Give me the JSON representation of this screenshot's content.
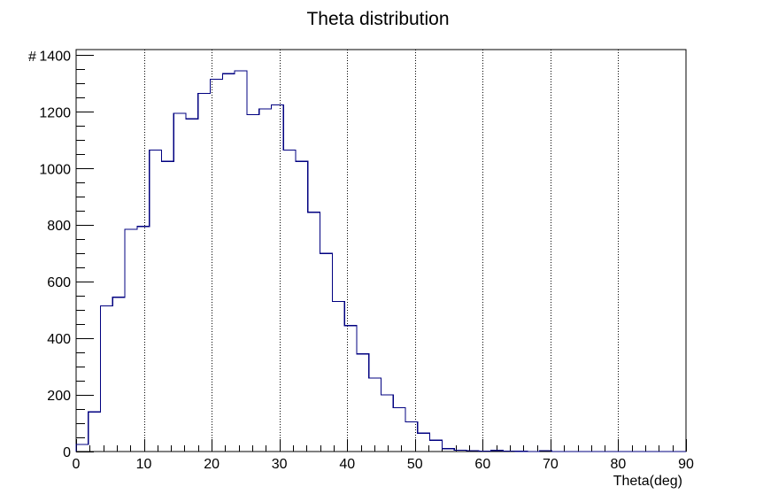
{
  "chart_data": {
    "type": "histogram",
    "title": "Theta distribution",
    "xlabel": "Theta(deg)",
    "ylabel": "#",
    "xlim": [
      0,
      90
    ],
    "ylim": [
      0,
      1420
    ],
    "x_ticks": [
      0,
      10,
      20,
      30,
      40,
      50,
      60,
      70,
      80,
      90
    ],
    "y_ticks": [
      0,
      200,
      400,
      600,
      800,
      1000,
      1200,
      1400
    ],
    "grid": "x-dotted",
    "bins": {
      "start": 0,
      "width": 1.8,
      "count": 50
    },
    "values": [
      25,
      140,
      515,
      545,
      785,
      795,
      1065,
      1025,
      1195,
      1175,
      1265,
      1315,
      1335,
      1345,
      1190,
      1210,
      1225,
      1065,
      1025,
      845,
      700,
      530,
      445,
      345,
      260,
      200,
      155,
      105,
      65,
      40,
      10,
      5,
      3,
      2,
      4,
      2,
      1,
      0,
      3,
      0,
      0,
      0,
      0,
      0,
      0,
      0,
      0,
      0,
      0,
      0
    ],
    "colors": {
      "line": "#000080",
      "axis": "#000000",
      "grid": "#000000",
      "background": "#ffffff"
    }
  }
}
